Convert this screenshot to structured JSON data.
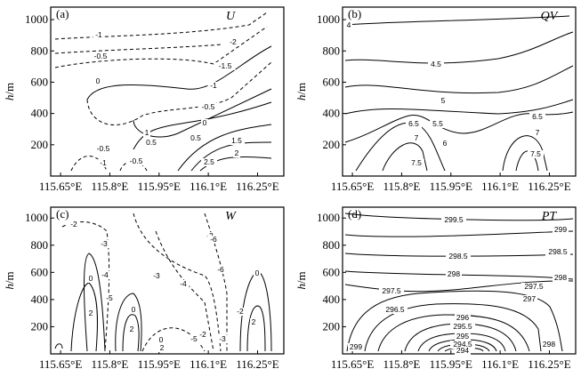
{
  "chart_data": [
    {
      "type": "contour",
      "panel_label": "(a)",
      "variable": "U",
      "ylabel": "h/m",
      "x_ticks": [
        "115.65°E",
        "115.8°E",
        "115.95°E",
        "116.1°E",
        "116.25°E"
      ],
      "y_ticks": [
        200,
        400,
        600,
        800,
        1000
      ],
      "xlim": [
        115.62,
        116.33
      ],
      "ylim": [
        0,
        1080
      ],
      "contour_labels": [
        "-1",
        "-2",
        "-0.5",
        "-1.5",
        "-1",
        "0",
        "-0.5",
        "0",
        "0.5",
        "1",
        "0.5",
        "1.5",
        "2",
        "-0.5",
        "-1",
        "-0.5",
        "2.5"
      ]
    },
    {
      "type": "contour",
      "panel_label": "(b)",
      "variable": "QV",
      "ylabel": "h/m",
      "x_ticks": [
        "115.65°E",
        "115.8°E",
        "115.95°E",
        "116.1°E",
        "116.25°E"
      ],
      "y_ticks": [
        200,
        400,
        600,
        800,
        1000
      ],
      "xlim": [
        115.62,
        116.33
      ],
      "ylim": [
        0,
        1080
      ],
      "contour_labels": [
        "4",
        "4.5",
        "5",
        "5.5",
        "6",
        "6.5",
        "6.5",
        "7",
        "7",
        "7.5",
        "7.5"
      ]
    },
    {
      "type": "contour",
      "panel_label": "(c)",
      "variable": "W",
      "ylabel": "h/m",
      "x_ticks": [
        "115.65°E",
        "115.8°E",
        "115.95°E",
        "116.1°E",
        "116.25°E"
      ],
      "y_ticks": [
        200,
        400,
        600,
        800,
        1000
      ],
      "xlim": [
        115.62,
        116.33
      ],
      "ylim": [
        0,
        1080
      ],
      "contour_labels": [
        "-2",
        "-3",
        "-4",
        "-5",
        "0",
        "2",
        "0",
        "2",
        "-3",
        "-4",
        "-2",
        "-6",
        "-6",
        "-2",
        "-5",
        "0",
        "2",
        "0",
        "2",
        "-2",
        "-3"
      ]
    },
    {
      "type": "contour",
      "panel_label": "(d)",
      "variable": "PT",
      "ylabel": "h/m",
      "x_ticks": [
        "115.65°E",
        "115.8°E",
        "115.95°E",
        "116.1°E",
        "116.25°E"
      ],
      "y_ticks": [
        200,
        400,
        600,
        800,
        1000
      ],
      "xlim": [
        115.62,
        116.33
      ],
      "ylim": [
        0,
        1080
      ],
      "contour_labels": [
        "299.5",
        "299",
        "298.5",
        "298.5",
        "298",
        "298",
        "297.5",
        "297.5",
        "297",
        "296.5",
        "296",
        "295.5",
        "295",
        "294.5",
        "294",
        "298",
        "299"
      ]
    }
  ]
}
